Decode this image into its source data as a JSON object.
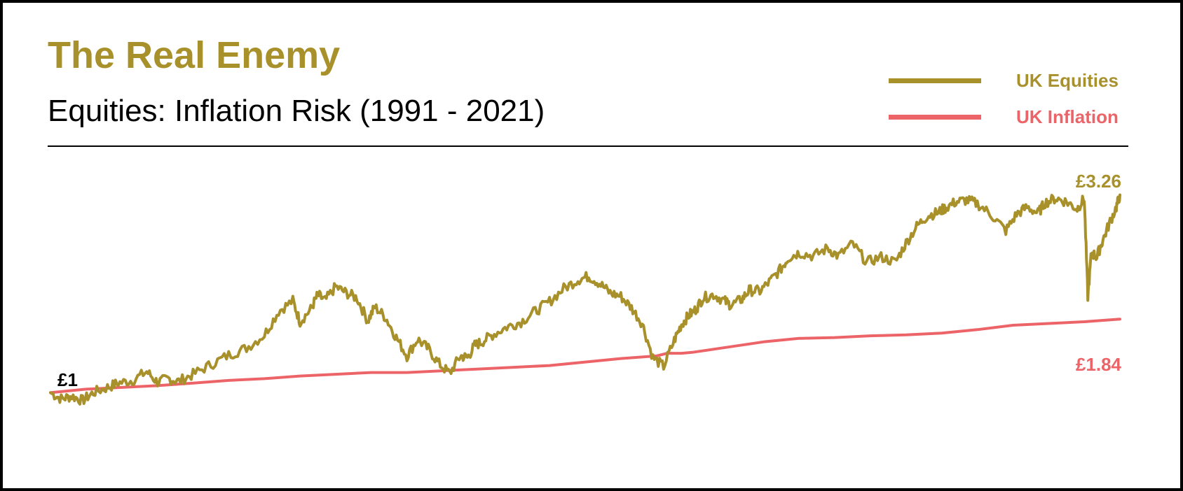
{
  "colors": {
    "equities": "#a8902b",
    "inflation": "#ec6468",
    "text": "#000000"
  },
  "chart_data": {
    "type": "line",
    "title": "The Real Enemy",
    "subtitle": "Equities: Inflation Risk (1991 - 2021)",
    "xlabel": "",
    "ylabel": "",
    "xlim": [
      1991,
      2021
    ],
    "ylim": [
      0.5,
      3.6
    ],
    "grid": false,
    "legend": "top-right",
    "start_label": "£1",
    "series": [
      {
        "name": "UK Equities",
        "end_label": "£3.26",
        "x": [
          1991.0,
          1991.3,
          1991.6,
          1991.9,
          1992.2,
          1992.6,
          1992.9,
          1993.3,
          1993.7,
          1994.0,
          1994.3,
          1994.6,
          1995.0,
          1995.5,
          1996.0,
          1996.5,
          1997.0,
          1997.4,
          1997.8,
          1998.0,
          1998.3,
          1998.5,
          1998.7,
          1999.0,
          1999.3,
          1999.6,
          1999.9,
          2000.1,
          2000.4,
          2000.7,
          2001.0,
          2001.3,
          2001.6,
          2001.9,
          2002.2,
          2002.5,
          2002.7,
          2002.9,
          2003.1,
          2003.4,
          2003.8,
          2004.2,
          2004.6,
          2005.0,
          2005.4,
          2005.8,
          2006.1,
          2006.4,
          2006.7,
          2007.0,
          2007.3,
          2007.6,
          2007.9,
          2008.2,
          2008.5,
          2008.7,
          2008.9,
          2009.1,
          2009.3,
          2009.6,
          2009.9,
          2010.1,
          2010.4,
          2010.6,
          2010.9,
          2011.2,
          2011.5,
          2011.7,
          2012.0,
          2012.4,
          2012.8,
          2013.1,
          2013.5,
          2013.9,
          2014.3,
          2014.7,
          2015.0,
          2015.3,
          2015.6,
          2015.9,
          2016.1,
          2016.4,
          2016.7,
          2017.0,
          2017.4,
          2017.8,
          2018.1,
          2018.4,
          2018.7,
          2018.9,
          2019.2,
          2019.5,
          2019.8,
          2020.0,
          2020.1,
          2020.2,
          2020.35,
          2020.5,
          2020.7,
          2020.9,
          2021.0
        ],
        "values": [
          1.0,
          0.93,
          0.96,
          0.91,
          1.0,
          1.06,
          1.11,
          1.14,
          1.24,
          1.12,
          1.16,
          1.13,
          1.21,
          1.32,
          1.43,
          1.51,
          1.66,
          1.93,
          2.05,
          1.81,
          1.95,
          2.12,
          2.05,
          2.21,
          2.14,
          2.08,
          1.82,
          1.98,
          1.86,
          1.63,
          1.42,
          1.61,
          1.5,
          1.33,
          1.22,
          1.42,
          1.4,
          1.54,
          1.58,
          1.66,
          1.75,
          1.81,
          1.93,
          2.04,
          2.19,
          2.29,
          2.33,
          2.25,
          2.14,
          2.1,
          1.97,
          1.79,
          1.4,
          1.3,
          1.6,
          1.78,
          1.88,
          1.95,
          2.08,
          2.12,
          2.05,
          2.0,
          2.07,
          2.17,
          2.16,
          2.28,
          2.42,
          2.54,
          2.6,
          2.56,
          2.65,
          2.56,
          2.7,
          2.49,
          2.55,
          2.49,
          2.71,
          2.9,
          3.02,
          3.06,
          3.11,
          3.18,
          3.2,
          3.16,
          3.03,
          2.85,
          3.04,
          3.12,
          3.05,
          3.17,
          3.22,
          3.18,
          3.1,
          3.22,
          2.1,
          2.6,
          2.55,
          2.72,
          2.93,
          3.12,
          3.26
        ]
      },
      {
        "name": "UK Inflation",
        "end_label": "£1.84",
        "x": [
          1991.0,
          1992.0,
          1993.0,
          1994.0,
          1995.0,
          1996.0,
          1997.0,
          1998.0,
          1999.0,
          2000.0,
          2001.0,
          2002.0,
          2003.0,
          2004.0,
          2005.0,
          2006.0,
          2007.0,
          2008.0,
          2008.3,
          2008.7,
          2009.0,
          2010.0,
          2011.0,
          2012.0,
          2013.0,
          2014.0,
          2015.0,
          2016.0,
          2017.0,
          2018.0,
          2019.0,
          2020.0,
          2021.0
        ],
        "values": [
          1.0,
          1.04,
          1.06,
          1.08,
          1.11,
          1.14,
          1.16,
          1.19,
          1.21,
          1.23,
          1.23,
          1.25,
          1.27,
          1.29,
          1.31,
          1.35,
          1.39,
          1.42,
          1.45,
          1.45,
          1.46,
          1.52,
          1.58,
          1.62,
          1.63,
          1.65,
          1.66,
          1.68,
          1.72,
          1.77,
          1.79,
          1.81,
          1.84
        ]
      }
    ]
  }
}
